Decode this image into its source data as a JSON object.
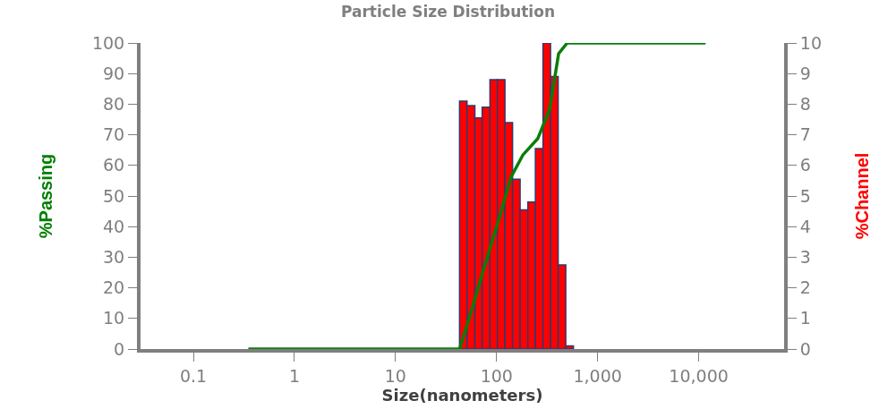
{
  "chart_data": {
    "type": "histogram",
    "title": "Particle Size Distribution",
    "xlabel": "Size(nanometers)",
    "ylabel": "%Passing",
    "y2label": "%Channel",
    "log": "x",
    "xlim": [
      0.03,
      70000
    ],
    "xticks": [
      0.1,
      1,
      10,
      100,
      {
        "value": 1000,
        "label": "1,000"
      },
      {
        "value": 10000,
        "label": "10,000"
      }
    ],
    "ylim": [
      0,
      100
    ],
    "yticks": [
      0,
      10,
      20,
      30,
      40,
      50,
      60,
      70,
      80,
      90,
      100
    ],
    "y2lim": [
      0,
      10
    ],
    "y2ticks": [
      0,
      1,
      2,
      3,
      4,
      5,
      6,
      7,
      8,
      9,
      10
    ],
    "series": [
      {
        "axis": "y2",
        "color": "#ff0000",
        "bins": [
          43,
          51,
          61,
          72,
          86,
          102,
          121,
          144,
          171,
          204,
          242,
          288,
          342,
          407,
          484,
          576
        ],
        "values": [
          8.1,
          7.95,
          7.55,
          7.9,
          8.8,
          8.8,
          7.4,
          5.55,
          4.55,
          4.8,
          6.55,
          10,
          8.9,
          2.75,
          0.1
        ]
      },
      {
        "type": "line",
        "axis": "y",
        "color": "#0a7d0a",
        "x": [
          0.35,
          43,
          53.5,
          75,
          106,
          139,
          182,
          255,
          335,
          411,
          500,
          11700
        ],
        "values": [
          0,
          0,
          10,
          26.4,
          42.7,
          56.2,
          63.4,
          68.7,
          78.3,
          96.5,
          100,
          100
        ]
      }
    ]
  }
}
